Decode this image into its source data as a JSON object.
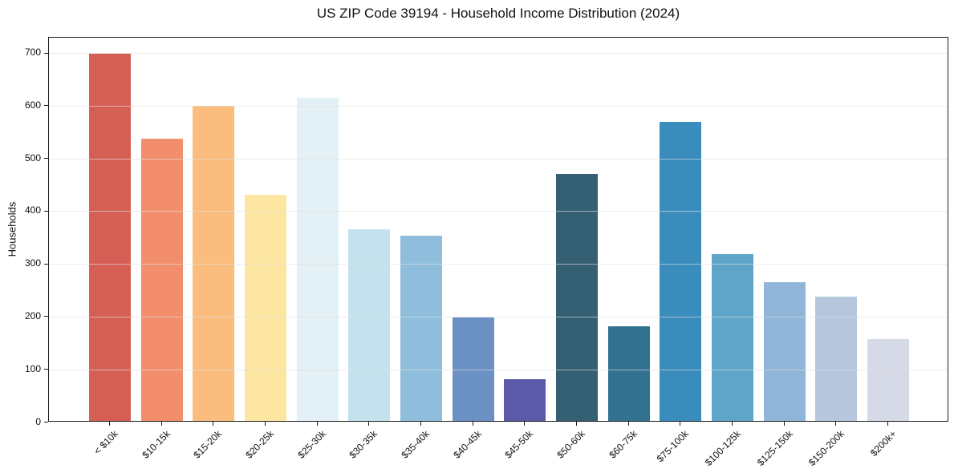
{
  "chart_data": {
    "type": "bar",
    "title": "US ZIP Code 39194 - Household Income Distribution (2024)",
    "xlabel": "",
    "ylabel": "Households",
    "categories": [
      "< $10k",
      "$10-15k",
      "$15-20k",
      "$20-25k",
      "$25-30k",
      "$30-35k",
      "$35-40k",
      "$40-45k",
      "$45-50k",
      "$50-60k",
      "$60-75k",
      "$75-100k",
      "$100-125k",
      "$125-150k",
      "$150-200k",
      "$200k+"
    ],
    "values": [
      697,
      535,
      597,
      429,
      613,
      364,
      352,
      196,
      79,
      468,
      180,
      567,
      316,
      263,
      235,
      155
    ],
    "bar_colors": [
      "#d65f55",
      "#f28e6c",
      "#fbbd7e",
      "#fde5a2",
      "#e3f0f5",
      "#c3e2ee",
      "#8fbddc",
      "#6b90c4",
      "#5c5aa8",
      "#355f72",
      "#337190",
      "#3a8cbd",
      "#5fa5c9",
      "#8fb5d8",
      "#b5c6dd",
      "#d6d9e6"
    ],
    "yticks": [
      0,
      100,
      200,
      300,
      400,
      500,
      600,
      700
    ],
    "ylim": [
      0,
      730
    ],
    "grid": "horizontal",
    "legend": "none"
  },
  "style": {
    "spine_color": "#1a1a1a",
    "grid_color": "#e0e0e0",
    "background": "#ffffff",
    "text_color": "#111111"
  }
}
